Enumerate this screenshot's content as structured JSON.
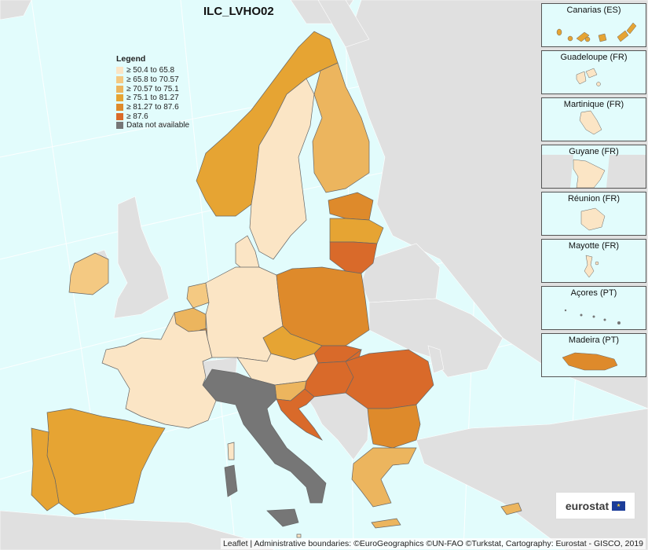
{
  "title": "ILC_LVHO02",
  "legend": {
    "title": "Legend",
    "items": [
      {
        "label": "≥ 50.4 to 65.8",
        "color": "#fbe5c5"
      },
      {
        "label": "≥ 65.8 to 70.57",
        "color": "#f4c982"
      },
      {
        "label": "≥ 70.57 to 75.1",
        "color": "#ecb55e"
      },
      {
        "label": "≥ 75.1 to 81.27",
        "color": "#e6a433"
      },
      {
        "label": "≥ 81.27 to 87.6",
        "color": "#de8a2b"
      },
      {
        "label": "≥ 87.6",
        "color": "#d96a2a"
      },
      {
        "label": "Data not available",
        "color": "#767676"
      }
    ]
  },
  "insets": [
    {
      "name": "Canarias (ES)"
    },
    {
      "name": "Guadeloupe (FR)"
    },
    {
      "name": "Martinique (FR)"
    },
    {
      "name": "Guyane (FR)"
    },
    {
      "name": "Réunion (FR)"
    },
    {
      "name": "Mayotte (FR)"
    },
    {
      "name": "Açores (PT)"
    },
    {
      "name": "Madeira (PT)"
    }
  ],
  "logo_text": "eurostat",
  "attribution": "Leaflet | Administrative boundaries: ©EuroGeographics ©UN-FAO ©Turkstat, Cartography: Eurostat - GISCO, 2019",
  "colors": {
    "sea": "#e2fcfc",
    "non_eu": "#e0e0e0",
    "graticule": "#ffffff"
  }
}
